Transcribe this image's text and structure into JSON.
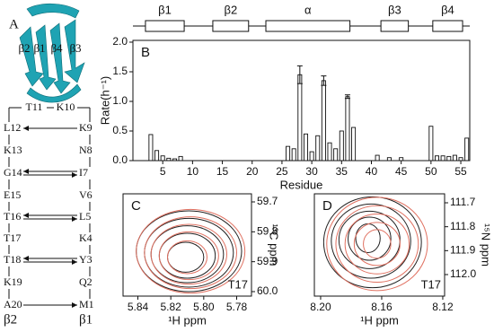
{
  "panel_a": {
    "label": "A",
    "cartoon_labels": [
      "β2",
      "β1",
      "β4",
      "β3"
    ],
    "hairpin_top": [
      "T11",
      "K10"
    ],
    "left_strand": [
      "L12",
      "K13",
      "G14",
      "E15",
      "T16",
      "T17",
      "T18",
      "K19",
      "A20",
      "β2"
    ],
    "right_strand": [
      "K9",
      "N8",
      "I7",
      "V6",
      "L5",
      "K4",
      "Y3",
      "Q2",
      "M1",
      "β1"
    ]
  },
  "chart_data": [
    {
      "type": "bar",
      "panel_label": "B",
      "x_label": "Residue",
      "y_label": "Rate(h⁻¹)",
      "x": [
        3,
        4,
        5,
        6,
        7,
        8,
        26,
        27,
        28,
        29,
        30,
        31,
        32,
        33,
        34,
        35,
        36,
        37,
        41,
        43,
        45,
        50,
        51,
        52,
        53,
        54,
        55,
        56
      ],
      "values": [
        0.44,
        0.17,
        0.08,
        0.04,
        0.03,
        0.07,
        0.24,
        0.2,
        1.45,
        0.45,
        0.15,
        0.42,
        1.35,
        0.3,
        0.2,
        0.5,
        1.08,
        0.56,
        0.09,
        0.05,
        0.05,
        0.58,
        0.08,
        0.08,
        0.07,
        0.09,
        0.05,
        0.38
      ],
      "errors": [
        null,
        null,
        null,
        null,
        null,
        null,
        null,
        null,
        0.15,
        null,
        null,
        null,
        0.08,
        null,
        null,
        null,
        0.03,
        null,
        null,
        null,
        null,
        null,
        null,
        null,
        null,
        null,
        null,
        null
      ],
      "color": "#ffffff",
      "xlim": [
        0,
        56.5
      ],
      "xticks": [
        5,
        10,
        15,
        20,
        25,
        30,
        35,
        40,
        45,
        50,
        55
      ],
      "ylim": [
        0,
        2.03
      ],
      "yticks": [
        {
          "value": 0,
          "label": "0.0"
        },
        0.5,
        {
          "value": 1,
          "label": "1.0"
        },
        1.5,
        {
          "value": 2,
          "label": "2.0"
        }
      ],
      "secondary_structure": [
        {
          "label": "β1",
          "start": 2.1,
          "end": 8.6
        },
        {
          "label": "β2",
          "start": 13.4,
          "end": 19.4
        },
        {
          "label": "α",
          "start": 22.3,
          "end": 36.4
        },
        {
          "label": "β3",
          "start": 41.6,
          "end": 46.2
        },
        {
          "label": "β4",
          "start": 50.3,
          "end": 55.3
        }
      ]
    },
    {
      "type": "contour",
      "panel_label": "C",
      "annotation": "T17",
      "x_label": "¹H ppm",
      "y_label": "¹³C ppm",
      "xlim": [
        5.849,
        5.771
      ],
      "xticks": [
        5.84,
        5.82,
        {
          "value": 5.8,
          "label": "5.80"
        },
        5.78
      ],
      "ylim": [
        60.015,
        59.673
      ],
      "yticks": [
        59.7,
        59.8,
        59.9,
        {
          "value": 60,
          "label": "60.0"
        }
      ],
      "contours": [
        {
          "x": 5.809,
          "y": 59.865,
          "rx": 0.032,
          "ry": 0.135,
          "color": "#222222"
        },
        {
          "x": 5.809,
          "y": 59.87,
          "rx": 0.027,
          "ry": 0.115,
          "color": "#222222"
        },
        {
          "x": 5.81,
          "y": 59.875,
          "rx": 0.022,
          "ry": 0.095,
          "color": "#222222"
        },
        {
          "x": 5.81,
          "y": 59.88,
          "rx": 0.017,
          "ry": 0.075,
          "color": "#222222"
        },
        {
          "x": 5.811,
          "y": 59.885,
          "rx": 0.011,
          "ry": 0.05,
          "color": "#222222"
        },
        {
          "x": 5.808,
          "y": 59.865,
          "rx": 0.033,
          "ry": 0.14,
          "color": "#e07060"
        },
        {
          "x": 5.808,
          "y": 59.87,
          "rx": 0.028,
          "ry": 0.12,
          "color": "#e07060"
        },
        {
          "x": 5.809,
          "y": 59.875,
          "rx": 0.023,
          "ry": 0.1,
          "color": "#e07060"
        },
        {
          "x": 5.809,
          "y": 59.88,
          "rx": 0.018,
          "ry": 0.08,
          "color": "#e07060"
        },
        {
          "x": 5.81,
          "y": 59.885,
          "rx": 0.012,
          "ry": 0.055,
          "color": "#e07060"
        }
      ]
    },
    {
      "type": "contour",
      "panel_label": "D",
      "annotation": "T17",
      "x_label": "¹H ppm",
      "y_label": "¹⁵N ppm",
      "xlim": [
        8.2041,
        8.1188
      ],
      "xticks": [
        {
          "value": 8.2,
          "label": "8.20"
        },
        8.16,
        8.12
      ],
      "ylim": [
        112.09,
        111.6625
      ],
      "yticks": [
        111.7,
        111.8,
        111.9,
        {
          "value": 112,
          "label": "112.0"
        }
      ],
      "contours": [
        {
          "x": 8.166,
          "y": 111.865,
          "rx": 0.032,
          "ry": 0.19,
          "color": "#222222"
        },
        {
          "x": 8.167,
          "y": 111.86,
          "rx": 0.026,
          "ry": 0.155,
          "color": "#222222"
        },
        {
          "x": 8.168,
          "y": 111.855,
          "rx": 0.02,
          "ry": 0.12,
          "color": "#222222"
        },
        {
          "x": 8.168,
          "y": 111.85,
          "rx": 0.014,
          "ry": 0.09,
          "color": "#222222"
        },
        {
          "x": 8.169,
          "y": 111.848,
          "rx": 0.008,
          "ry": 0.06,
          "color": "#222222"
        },
        {
          "x": 8.163,
          "y": 111.872,
          "rx": 0.033,
          "ry": 0.195,
          "color": "#e07060"
        },
        {
          "x": 8.163,
          "y": 111.872,
          "rx": 0.027,
          "ry": 0.16,
          "color": "#e07060"
        },
        {
          "x": 8.163,
          "y": 111.872,
          "rx": 0.021,
          "ry": 0.125,
          "color": "#e07060"
        },
        {
          "x": 8.163,
          "y": 111.872,
          "rx": 0.015,
          "ry": 0.09,
          "color": "#e07060"
        },
        {
          "x": 8.163,
          "y": 111.872,
          "rx": 0.009,
          "ry": 0.06,
          "color": "#e07060"
        }
      ]
    }
  ]
}
